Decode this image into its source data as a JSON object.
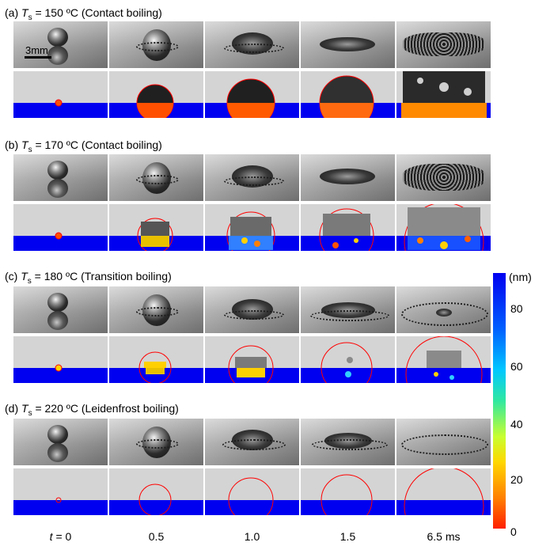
{
  "rows": [
    {
      "prefix": "(a) ",
      "var": "T",
      "sub": "s",
      "rest": " = 150 ºC (Contact boiling)"
    },
    {
      "prefix": "(b) ",
      "var": "T",
      "sub": "s",
      "rest": " = 170 ºC (Contact boiling)"
    },
    {
      "prefix": "(c) ",
      "var": "T",
      "sub": "s",
      "rest": " = 180 ºC (Transition boiling)"
    },
    {
      "prefix": "(d) ",
      "var": "T",
      "sub": "s",
      "rest": " = 220 ºC (Leidenfrost boiling)"
    }
  ],
  "scale_bar": {
    "label": "3mm"
  },
  "time_axis": {
    "first": {
      "var": "t",
      "rest": " = 0"
    },
    "labels": [
      "0.5",
      "1.0",
      "1.5",
      "6.5 ms"
    ]
  },
  "colorbar": {
    "unit": "(nm)",
    "ticks": [
      "80",
      "60",
      "40",
      "20",
      "0"
    ],
    "colors": {
      "max": "#0000f0",
      "min": "#ff2000"
    }
  },
  "colors": {
    "contact_line": "#ff0000",
    "substrate_gap": "#0000f0",
    "background": "#d4d4d4"
  }
}
